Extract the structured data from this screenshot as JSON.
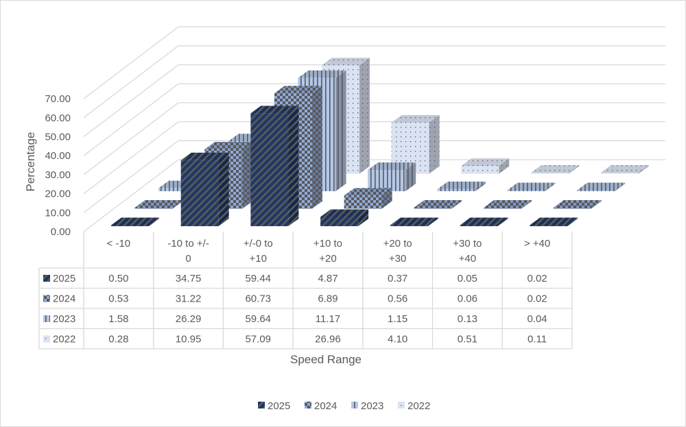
{
  "chart_data": {
    "type": "bar",
    "style": "3d-column-with-data-table",
    "title": "",
    "xlabel": "Speed Range",
    "ylabel": "Percentage",
    "ylim": [
      0,
      70
    ],
    "ytick_step": 10,
    "yticks": [
      "0.00",
      "10.00",
      "20.00",
      "30.00",
      "40.00",
      "50.00",
      "60.00",
      "70.00"
    ],
    "grid": true,
    "legend_position": "bottom",
    "categories": [
      [
        "< -10"
      ],
      [
        "-10 to +/-",
        "0"
      ],
      [
        "+/-0 to",
        "+10"
      ],
      [
        "+10 to",
        "+20"
      ],
      [
        "+20 to",
        "+30"
      ],
      [
        "+30 to",
        "+40"
      ],
      [
        "> +40"
      ]
    ],
    "series": [
      {
        "name": "2025",
        "values": [
          0.5,
          34.75,
          59.44,
          4.87,
          0.37,
          0.05,
          0.02
        ],
        "display": [
          "0.50",
          "34.75",
          "59.44",
          "4.87",
          "0.37",
          "0.05",
          "0.02"
        ],
        "pattern": "diagonal",
        "color": "#1f3864",
        "pattern_color": "#5a5a5a"
      },
      {
        "name": "2024",
        "values": [
          0.53,
          31.22,
          60.73,
          6.89,
          0.56,
          0.06,
          0.02
        ],
        "display": [
          "0.53",
          "31.22",
          "60.73",
          "6.89",
          "0.56",
          "0.06",
          "0.02"
        ],
        "pattern": "checker",
        "color": "#8faadc",
        "pattern_color": "#595959"
      },
      {
        "name": "2023",
        "values": [
          1.58,
          26.29,
          59.64,
          11.17,
          1.15,
          0.13,
          0.04
        ],
        "display": [
          "1.58",
          "26.29",
          "59.64",
          "11.17",
          "1.15",
          "0.13",
          "0.04"
        ],
        "pattern": "vertical",
        "color": "#b4c7e7",
        "pattern_color": "#595959"
      },
      {
        "name": "2022",
        "values": [
          0.28,
          10.95,
          57.09,
          26.96,
          4.1,
          0.51,
          0.11
        ],
        "display": [
          "0.28",
          "10.95",
          "57.09",
          "26.96",
          "4.10",
          "0.51",
          "0.11"
        ],
        "pattern": "dots",
        "color": "#dae3f3",
        "pattern_color": "#595959"
      }
    ]
  }
}
